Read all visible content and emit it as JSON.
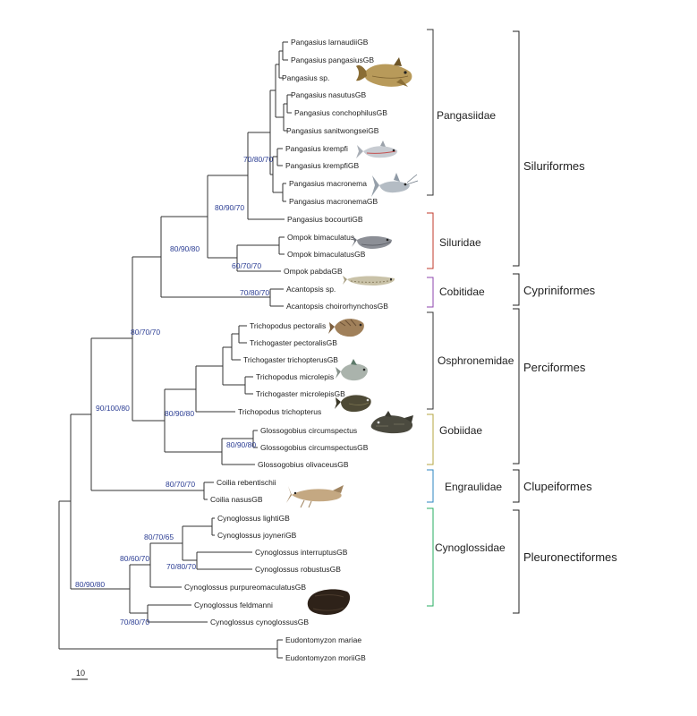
{
  "taxa": [
    "Pangasius larnaudiiGB",
    "Pangasius pangasiusGB",
    "Pangasius sp.",
    "Pangasius nasutusGB",
    "Pangasius conchophilusGB",
    "Pangasius sanitwongseiGB",
    "Pangasius krempfi",
    "Pangasius krempfiGB",
    "Pangasius macronema",
    "Pangasius macronemaGB",
    "Pangasius bocourtiGB",
    "Ompok bimaculatus",
    "Ompok bimaculatusGB",
    "Ompok pabdaGB",
    "Acantopsis sp.",
    "Acantopsis choirorhynchosGB",
    "Trichopodus pectoralis",
    "Trichogaster pectoralisGB",
    "Trichogaster trichopterusGB",
    "Trichopodus microlepis",
    "Trichogaster microlepisGB",
    "Trichopodus trichopterus",
    "Glossogobius circumspectus",
    "Glossogobius circumspectusGB",
    "Glossogobius olivaceusGB",
    "Coilia rebentischii",
    "Coilia nasusGB",
    "Cynoglossus lightiGB",
    "Cynoglossus joyneriGB",
    "Cynoglossus interruptusGB",
    "Cynoglossus robustusGB",
    "Cynoglossus purpureomaculatusGB",
    "Cynoglossus feldmanni",
    "Cynoglossus cynoglossusGB",
    "Eudontomyzon mariae",
    "Eudontomyzon moriiGB"
  ],
  "support_values": [
    "70/80/70",
    "80/90/70",
    "80/90/80",
    "60/70/70",
    "70/80/70",
    "80/70/70",
    "90/100/80",
    "80/90/80",
    "80/90/80",
    "80/70/70",
    "80/70/65",
    "80/60/70",
    "70/80/70",
    "80/90/80",
    "70/80/70"
  ],
  "families": [
    {
      "name": "Pangasiidae",
      "color": "#333333"
    },
    {
      "name": "Siluridae",
      "color": "#c0392b"
    },
    {
      "name": "Cobitidae",
      "color": "#8e44ad"
    },
    {
      "name": "Osphronemidae",
      "color": "#333333"
    },
    {
      "name": "Gobiidae",
      "color": "#b5a642"
    },
    {
      "name": "Engraulidae",
      "color": "#2e86c1"
    },
    {
      "name": "Cynoglossidae",
      "color": "#27ae60"
    }
  ],
  "orders": [
    "Siluriformes",
    "Cypriniformes",
    "Perciformes",
    "Clupeiformes",
    "Pleuronectiformes"
  ],
  "scale_bar_label": "10",
  "fish_icons": [
    "silver-shark-catfish-icon",
    "silver-catfish-icon",
    "silver-catfish-icon",
    "glass-catfish-icon",
    "loach-icon",
    "gourami-icon",
    "gourami-icon",
    "gourami-icon",
    "goby-icon",
    "anchovy-icon",
    "tongue-sole-icon"
  ]
}
